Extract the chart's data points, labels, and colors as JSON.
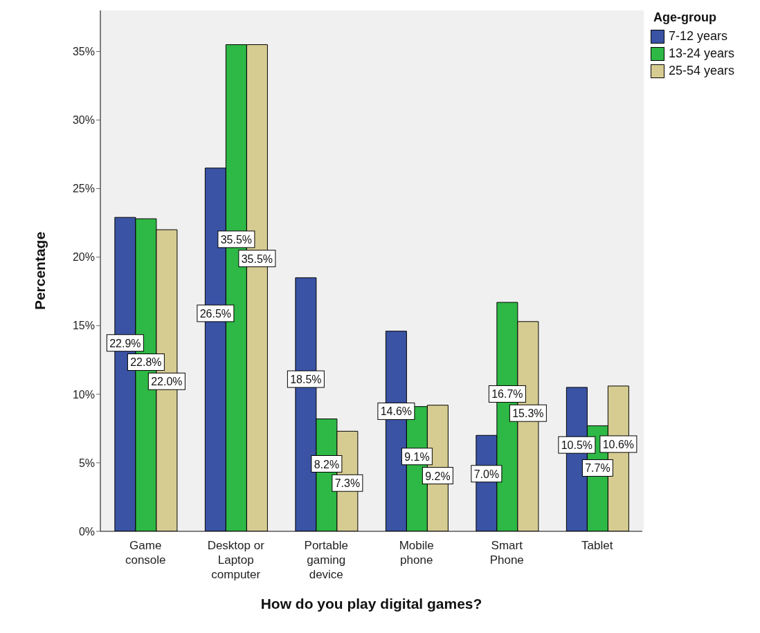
{
  "chart_data": {
    "type": "bar",
    "xlabel": "How do you play digital games?",
    "ylabel": "Percentage",
    "legend_title": "Age-group",
    "legend": "top right",
    "grid": false,
    "data_labels": true,
    "categories": [
      "Game console",
      "Desktop or Laptop computer",
      "Portable gaming device",
      "Mobile phone",
      "Smart Phone",
      "Tablet"
    ],
    "ylim": [
      0,
      38
    ],
    "yticks": [
      {
        "value": 0,
        "label": "0%"
      },
      {
        "value": 5,
        "label": "5%"
      },
      {
        "value": 10,
        "label": "10%"
      },
      {
        "value": 15,
        "label": "15%"
      },
      {
        "value": 20,
        "label": "20%"
      },
      {
        "value": 25,
        "label": "25%"
      },
      {
        "value": 30,
        "label": "30%"
      },
      {
        "value": 35,
        "label": "35%"
      }
    ],
    "series": [
      {
        "name": "7-12 years",
        "color": "#3a53a4",
        "values": [
          22.9,
          26.5,
          18.5,
          14.6,
          7.0,
          10.5
        ],
        "value_labels": [
          "22.9%",
          "26.5%",
          "18.5%",
          "14.6%",
          "7.0%",
          "10.5%"
        ]
      },
      {
        "name": "13-24 years",
        "color": "#2eb845",
        "values": [
          22.8,
          35.5,
          8.2,
          9.1,
          16.7,
          7.7
        ],
        "value_labels": [
          "22.8%",
          "35.5%",
          "8.2%",
          "9.1%",
          "16.7%",
          "7.7%"
        ]
      },
      {
        "name": "25-54 years",
        "color": "#d6cc92",
        "values": [
          22.0,
          35.5,
          7.3,
          9.2,
          15.3,
          10.6
        ],
        "value_labels": [
          "22.0%",
          "35.5%",
          "7.3%",
          "9.2%",
          "15.3%",
          "10.6%"
        ]
      }
    ]
  }
}
